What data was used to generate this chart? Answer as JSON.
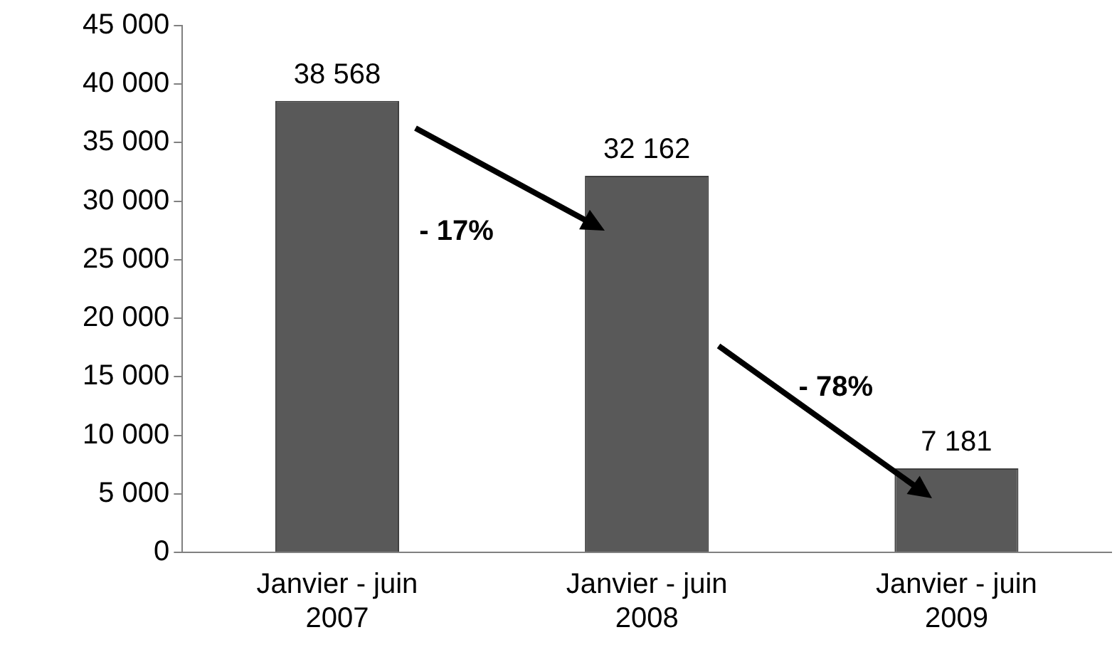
{
  "chart_data": {
    "type": "bar",
    "categories": [
      "Janvier - juin 2007",
      "Janvier - juin 2008",
      "Janvier - juin 2009"
    ],
    "values": [
      38568,
      32162,
      7181
    ],
    "value_labels": [
      "38 568",
      "32 162",
      "7 181"
    ],
    "color": "#595959",
    "ylim": [
      0,
      45000
    ],
    "yticks": [
      {
        "value": 0,
        "label": "0"
      },
      {
        "value": 5000,
        "label": "5 000"
      },
      {
        "value": 10000,
        "label": "10 000"
      },
      {
        "value": 15000,
        "label": "15 000"
      },
      {
        "value": 20000,
        "label": "20 000"
      },
      {
        "value": 25000,
        "label": "25 000"
      },
      {
        "value": 30000,
        "label": "30 000"
      },
      {
        "value": 35000,
        "label": "35 000"
      },
      {
        "value": 40000,
        "label": "40 000"
      },
      {
        "value": 45000,
        "label": "45 000"
      }
    ],
    "annotations": [
      "- 17%",
      "- 78%"
    ],
    "grid": false,
    "legend": false
  }
}
